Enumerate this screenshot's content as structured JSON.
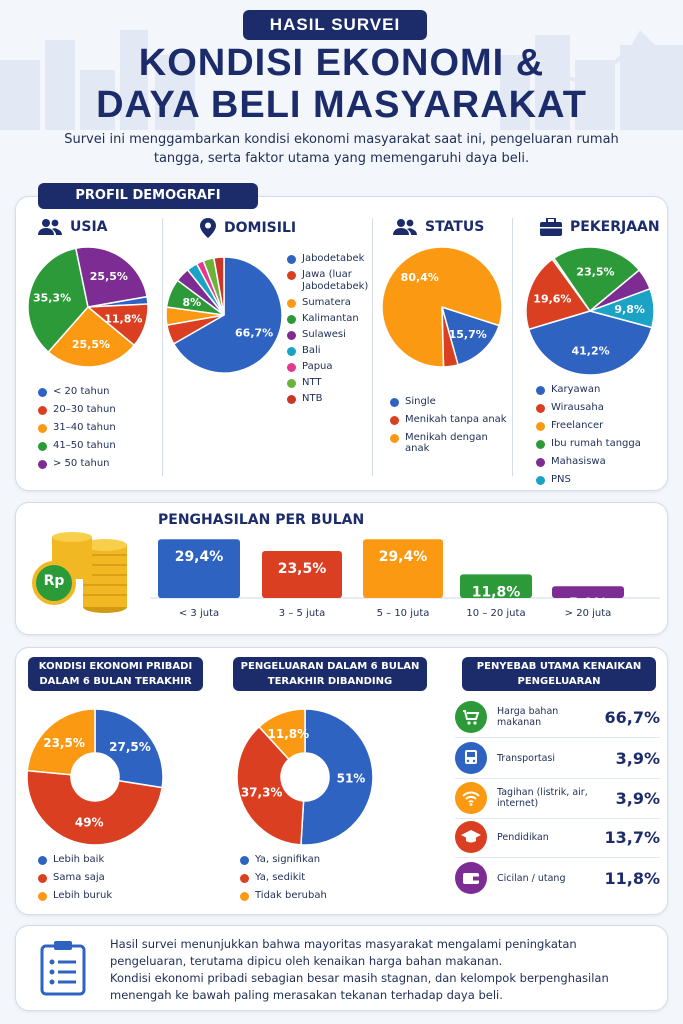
{
  "header": {
    "badge": "HASIL SURVEI",
    "title_line1": "KONDISI EKONOMI &",
    "title_line2": "DAYA BELI MASYARAKAT",
    "subtitle": "Survei ini menggambarkan kondisi ekonomi masyarakat saat ini, pengeluaran rumah tangga, serta faktor utama yang memengaruhi daya beli."
  },
  "demografi": {
    "badge": "PROFIL DEMOGRAFI",
    "usia_title": "USIA",
    "domisili_title": "DOMISILI",
    "status_title": "STATUS",
    "pekerjaan_title": "PEKERJAAN"
  },
  "income": {
    "title": "PENGHASILAN PER BULAN",
    "coin_label": "Rp"
  },
  "kondisi": {
    "title": "KONDISI EKONOMI PRIBADI DALAM 6 BULAN TERAKHIR"
  },
  "pengeluaran": {
    "title": "PENGELUARAN DALAM 6 BULAN TERAKHIR DIBANDING SEBELUMNYA"
  },
  "penyebab": {
    "title": "PENYEBAB UTAMA KENAIKAN PENGELUARAN"
  },
  "conclusion": {
    "line1": "Hasil survei menunjukkan bahwa mayoritas masyarakat mengalami peningkatan pengeluaran, terutama dipicu oleh kenaikan harga bahan makanan.",
    "line2": "Kondisi ekonomi pribadi sebagian besar masih stagnan, dan kelompok berpenghasilan menengah ke bawah paling merasakan tekanan terhadap daya beli."
  },
  "chart_data": [
    {
      "id": "usia",
      "type": "pie",
      "title": "USIA",
      "categories": [
        "< 20 tahun",
        "20–30 tahun",
        "31–40 tahun",
        "41–50 tahun",
        "> 50 tahun"
      ],
      "values": [
        2.0,
        11.8,
        25.5,
        35.3,
        25.5
      ],
      "labels": [
        "",
        "11,8%",
        "25,5%",
        "35,3%",
        "25,5%"
      ],
      "colors": [
        "#2e63c2",
        "#db3f22",
        "#fb9a12",
        "#2d9a3a",
        "#7d2c93"
      ]
    },
    {
      "id": "domisili",
      "type": "pie",
      "title": "DOMISILI",
      "categories": [
        "Jabodetabek",
        "Jawa (luar Jabodetabek)",
        "Sumatera",
        "Kalimantan",
        "Sulawesi",
        "Bali",
        "Papua",
        "NTT",
        "NTB"
      ],
      "values": [
        66.7,
        5.5,
        5.0,
        8.0,
        4.0,
        3.0,
        2.0,
        3.0,
        2.8
      ],
      "labels": [
        "66,7%",
        "",
        "",
        "8%",
        "",
        "",
        "",
        "",
        ""
      ],
      "colors": [
        "#2e63c2",
        "#db3f22",
        "#fb9a12",
        "#2d9a3a",
        "#7d2c93",
        "#1aa3c4",
        "#e23a8c",
        "#6ab23a",
        "#c8372a"
      ]
    },
    {
      "id": "status",
      "type": "pie",
      "title": "STATUS",
      "categories": [
        "Single",
        "Menikah tanpa anak",
        "Menikah dengan anak"
      ],
      "values": [
        15.7,
        3.9,
        80.4
      ],
      "labels": [
        "15,7%",
        "",
        "80,4%"
      ],
      "colors": [
        "#2e63c2",
        "#db3f22",
        "#fb9a12"
      ]
    },
    {
      "id": "pekerjaan",
      "type": "pie",
      "title": "PEKERJAAN",
      "categories": [
        "Karyawan",
        "Wirausaha",
        "Freelancer",
        "Ibu rumah tangga",
        "Mahasiswa",
        "PNS"
      ],
      "values": [
        41.2,
        19.6,
        0.5,
        23.5,
        5.4,
        9.8
      ],
      "labels": [
        "41,2%",
        "19,6%",
        "",
        "23,5%",
        "",
        "9,8%"
      ],
      "colors": [
        "#2e63c2",
        "#db3f22",
        "#fb9a12",
        "#2d9a3a",
        "#7d2c93",
        "#1aa3c4"
      ]
    },
    {
      "id": "penghasilan",
      "type": "bar",
      "title": "PENGHASILAN PER BULAN",
      "categories": [
        "< 3 juta",
        "3 – 5 juta",
        "5 – 10 juta",
        "10 – 20 juta",
        "> 20 juta"
      ],
      "values": [
        29.4,
        23.5,
        29.4,
        11.8,
        5.9
      ],
      "labels": [
        "29,4%",
        "23,5%",
        "29,4%",
        "11,8%",
        "5,9%"
      ],
      "colors": [
        "#2e63c2",
        "#db3f22",
        "#fb9a12",
        "#2d9a3a",
        "#7d2c93"
      ]
    },
    {
      "id": "kondisi",
      "type": "pie",
      "title": "KONDISI EKONOMI PRIBADI DALAM 6 BULAN TERAKHIR",
      "categories": [
        "Lebih baik",
        "Sama saja",
        "Lebih buruk"
      ],
      "values": [
        27.5,
        49,
        23.5
      ],
      "labels": [
        "27,5%",
        "49%",
        "23,5%"
      ],
      "colors": [
        "#2e63c2",
        "#db3f22",
        "#fb9a12"
      ]
    },
    {
      "id": "pengeluaran",
      "type": "pie",
      "title": "PENGELUARAN DALAM 6 BULAN TERAKHIR DIBANDING SEBELUMNYA",
      "categories": [
        "Ya, signifikan",
        "Ya, sedikit",
        "Tidak berubah"
      ],
      "values": [
        51,
        37.3,
        11.8
      ],
      "labels": [
        "51%",
        "37,3%",
        "11,8%"
      ],
      "colors": [
        "#2e63c2",
        "#db3f22",
        "#fb9a12"
      ]
    },
    {
      "id": "penyebab",
      "type": "table",
      "title": "PENYEBAB UTAMA KENAIKAN PENGELUARAN",
      "categories": [
        "Harga bahan makanan",
        "Transportasi",
        "Tagihan (listrik, air, internet)",
        "Pendidikan",
        "Cicilan / utang"
      ],
      "values": [
        66.7,
        3.9,
        3.9,
        13.7,
        11.8
      ],
      "labels": [
        "66,7%",
        "3,9%",
        "3,9%",
        "13,7%",
        "11,8%"
      ],
      "icons": [
        "cart-icon",
        "bus-icon",
        "wifi-icon",
        "graduation-cap-icon",
        "wallet-icon"
      ],
      "colors": [
        "#2d9a3a",
        "#2e63c2",
        "#fb9a12",
        "#db3f22",
        "#7d2c93"
      ]
    }
  ]
}
